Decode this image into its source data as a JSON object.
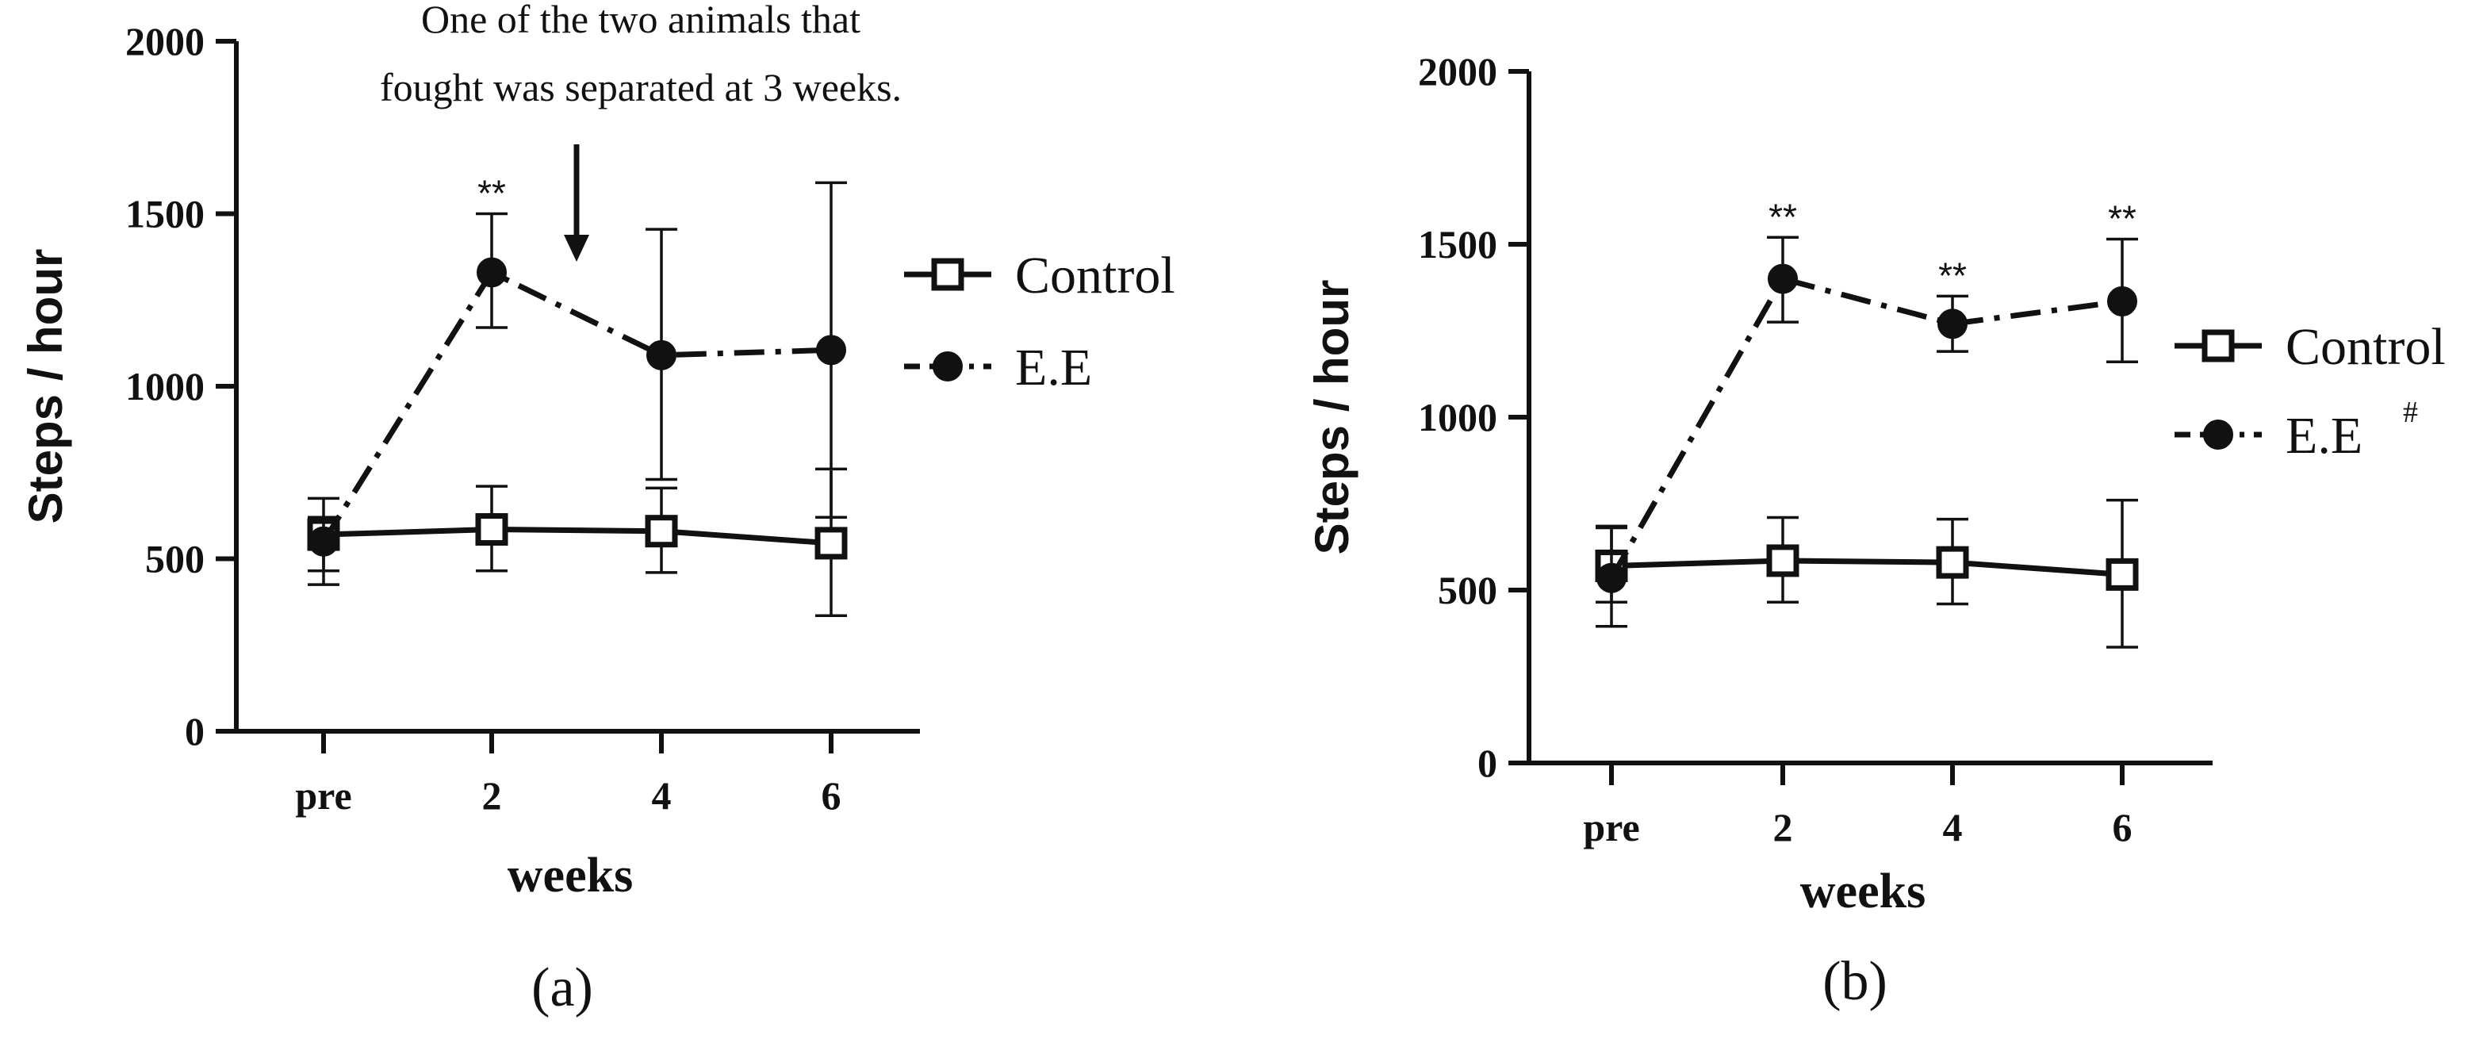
{
  "chart_data": [
    {
      "type": "line",
      "panel_label": "(a)",
      "xlabel": "weeks",
      "ylabel": "Steps / hour",
      "categories": [
        "pre",
        "2",
        "4",
        "6"
      ],
      "ylim": [
        0,
        2000
      ],
      "yticks": [
        0,
        500,
        1000,
        1500,
        2000
      ],
      "grid": false,
      "legend_position": "right",
      "series": [
        {
          "name": "Control",
          "marker": "open-square",
          "line": "solid",
          "values": [
            570,
            585,
            580,
            545
          ],
          "err_up": [
            675,
            710,
            705,
            760
          ],
          "err_down": [
            465,
            465,
            460,
            335
          ]
        },
        {
          "name": "E.E",
          "marker": "filled-circle",
          "line": "dash-dot",
          "values": [
            550,
            1330,
            1090,
            1105
          ],
          "err_up": [
            620,
            1500,
            1455,
            1590
          ],
          "err_down": [
            425,
            1170,
            730,
            620
          ]
        }
      ],
      "significance": [
        {
          "category": "2",
          "label": "**"
        }
      ],
      "annotation": {
        "lines": [
          "One of the two animals that",
          "fought was separated at 3 weeks."
        ],
        "x": 3
      }
    },
    {
      "type": "line",
      "panel_label": "(b)",
      "xlabel": "weeks",
      "ylabel": "Steps / hour",
      "categories": [
        "pre",
        "2",
        "4",
        "6"
      ],
      "ylim": [
        0,
        2000
      ],
      "yticks": [
        0,
        500,
        1000,
        1500,
        2000
      ],
      "grid": false,
      "legend_position": "right",
      "series": [
        {
          "name": "Control",
          "marker": "open-square",
          "line": "solid",
          "values": [
            570,
            585,
            580,
            545
          ],
          "err_up": [
            685,
            710,
            705,
            760
          ],
          "err_down": [
            465,
            465,
            460,
            335
          ]
        },
        {
          "name": "E.E",
          "name_superscript": "#",
          "marker": "filled-circle",
          "line": "dash-dot",
          "values": [
            535,
            1400,
            1270,
            1335
          ],
          "err_up": [
            680,
            1520,
            1350,
            1515
          ],
          "err_down": [
            395,
            1275,
            1190,
            1160
          ]
        }
      ],
      "significance": [
        {
          "category": "2",
          "label": "**"
        },
        {
          "category": "4",
          "label": "**"
        },
        {
          "category": "6",
          "label": "**"
        }
      ]
    }
  ]
}
